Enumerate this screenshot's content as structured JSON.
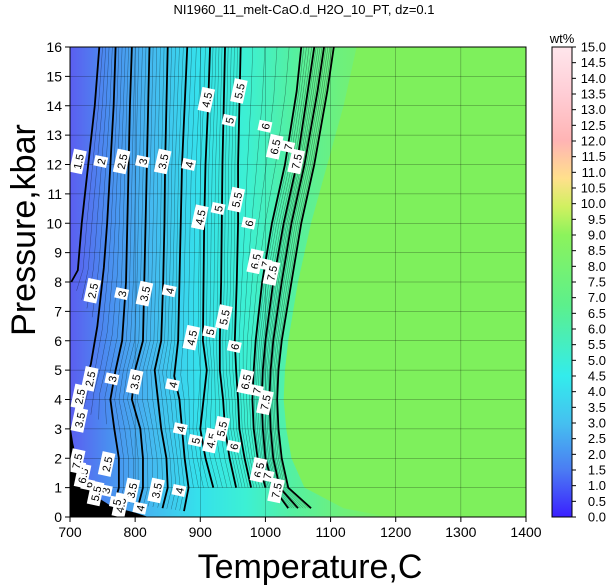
{
  "chart_data": {
    "type": "heatmap",
    "title": "NI1960_11_melt-CaO.d_H2O_10_PT, dz=0.1",
    "xlabel": "Temperature,C",
    "ylabel": "Pressure,kbar",
    "xlim": [
      700,
      1400
    ],
    "ylim": [
      0,
      16
    ],
    "x_ticks": [
      "700",
      "800",
      "900",
      "1000",
      "1100",
      "1200",
      "1300",
      "1400"
    ],
    "y_ticks": [
      "0",
      "1",
      "2",
      "3",
      "4",
      "5",
      "6",
      "7",
      "8",
      "9",
      "10",
      "11",
      "12",
      "13",
      "14",
      "15",
      "16"
    ],
    "grid": true,
    "colorbar": {
      "label": "wt%",
      "range": [
        0.0,
        15.0
      ],
      "ticks": [
        "0.0",
        "0.5",
        "1.0",
        "1.5",
        "2.0",
        "2.5",
        "3.0",
        "3.5",
        "4.0",
        "4.5",
        "5.0",
        "5.5",
        "6.0",
        "6.5",
        "7.0",
        "7.5",
        "8.0",
        "8.5",
        "9.0",
        "9.5",
        "10.0",
        "10.5",
        "11.0",
        "11.5",
        "12.0",
        "12.5",
        "13.0",
        "13.5",
        "14.0",
        "14.5",
        "15.0"
      ]
    },
    "saturated_value": 10.0,
    "contours": [
      {
        "level": "1.5",
        "points": [
          [
            745,
            16
          ],
          [
            738,
            14
          ],
          [
            728,
            12
          ],
          [
            718,
            10
          ],
          [
            712,
            8.4
          ],
          [
            702,
            8.0
          ]
        ]
      },
      {
        "level": "2",
        "points": [
          [
            770,
            16
          ],
          [
            767,
            14
          ],
          [
            762,
            12
          ],
          [
            757,
            10
          ],
          [
            752,
            8.5
          ],
          [
            742,
            6.5
          ],
          [
            732,
            5.2
          ],
          [
            720,
            4.4
          ],
          [
            708,
            3.8
          ]
        ]
      },
      {
        "level": "2.5",
        "points": [
          [
            795,
            16
          ],
          [
            792,
            14
          ],
          [
            790,
            12
          ],
          [
            788,
            10
          ],
          [
            786,
            8
          ],
          [
            780,
            6.0
          ],
          [
            770,
            5.0
          ],
          [
            762,
            4.0
          ],
          [
            768,
            3.0
          ],
          [
            775,
            2.0
          ],
          [
            775,
            1.0
          ],
          [
            770,
            0.6
          ]
        ]
      },
      {
        "level": "3",
        "points": [
          [
            822,
            16
          ],
          [
            820,
            14
          ],
          [
            818,
            12
          ],
          [
            816,
            10
          ],
          [
            814,
            8
          ],
          [
            812,
            6
          ],
          [
            800,
            5.0
          ],
          [
            795,
            4.0
          ],
          [
            808,
            3.0
          ],
          [
            812,
            2.0
          ],
          [
            812,
            1.0
          ],
          [
            805,
            0.4
          ]
        ]
      },
      {
        "level": "3.5",
        "points": [
          [
            850,
            16
          ],
          [
            848,
            14
          ],
          [
            846,
            12
          ],
          [
            845,
            10
          ],
          [
            843,
            8
          ],
          [
            840,
            6
          ],
          [
            830,
            5.0
          ],
          [
            835,
            4.0
          ],
          [
            840,
            3.0
          ],
          [
            848,
            2.0
          ],
          [
            850,
            1.0
          ],
          [
            842,
            0.3
          ]
        ]
      },
      {
        "level": "4",
        "points": [
          [
            880,
            16
          ],
          [
            876,
            14
          ],
          [
            872,
            12
          ],
          [
            870,
            10
          ],
          [
            868,
            8
          ],
          [
            866,
            6
          ],
          [
            860,
            4.8
          ],
          [
            868,
            4.0
          ],
          [
            872,
            3.0
          ],
          [
            876,
            2.0
          ],
          [
            882,
            1.0
          ],
          [
            875,
            0.2
          ]
        ]
      },
      {
        "level": "4.5",
        "points": [
          [
            915,
            16
          ],
          [
            912,
            14
          ],
          [
            908,
            12
          ],
          [
            906,
            10
          ],
          [
            905,
            8
          ],
          [
            904,
            6.0
          ],
          [
            910,
            5.0
          ],
          [
            905,
            4.0
          ],
          [
            900,
            3.0
          ],
          [
            908,
            2.0
          ],
          [
            920,
            1.0
          ]
        ]
      },
      {
        "level": "5",
        "points": [
          [
            938,
            16
          ],
          [
            936,
            14
          ],
          [
            934,
            12
          ],
          [
            933,
            10
          ],
          [
            932,
            8
          ],
          [
            930,
            6
          ],
          [
            930,
            5.0
          ],
          [
            935,
            4.0
          ],
          [
            938,
            3.0
          ],
          [
            945,
            2.0
          ],
          [
            955,
            1.0
          ]
        ]
      },
      {
        "level": "5.5",
        "points": [
          [
            962,
            16
          ],
          [
            960,
            14
          ],
          [
            958,
            12
          ],
          [
            958,
            10
          ],
          [
            956,
            8
          ],
          [
            953,
            6
          ],
          [
            955,
            5.0
          ],
          [
            958,
            4.0
          ],
          [
            960,
            3.0
          ],
          [
            968,
            2.0
          ],
          [
            978,
            1.0
          ]
        ]
      },
      {
        "level": "6",
        "points": [
          [
            1055,
            16
          ],
          [
            1048,
            14.5
          ],
          [
            1030,
            12
          ],
          [
            1010,
            10
          ],
          [
            995,
            8
          ],
          [
            985,
            6
          ],
          [
            982,
            5
          ],
          [
            980,
            4
          ],
          [
            982,
            3
          ],
          [
            988,
            2
          ],
          [
            1000,
            1.0
          ]
        ]
      },
      {
        "level": "6.5",
        "points": [
          [
            1075,
            16
          ],
          [
            1065,
            14.5
          ],
          [
            1048,
            12
          ],
          [
            1028,
            10
          ],
          [
            1012,
            8
          ],
          [
            1000,
            6
          ],
          [
            996,
            5
          ],
          [
            994,
            4
          ],
          [
            996,
            3
          ],
          [
            1000,
            2
          ],
          [
            1012,
            1.0
          ],
          [
            1035,
            0.3
          ]
        ]
      },
      {
        "level": "7",
        "points": [
          [
            1090,
            16
          ],
          [
            1080,
            14.5
          ],
          [
            1060,
            12
          ],
          [
            1040,
            10
          ],
          [
            1025,
            8
          ],
          [
            1012,
            6
          ],
          [
            1008,
            5
          ],
          [
            1006,
            4
          ],
          [
            1008,
            3
          ],
          [
            1012,
            2
          ],
          [
            1022,
            1.0
          ],
          [
            1050,
            0.3
          ]
        ]
      },
      {
        "level": "7.5",
        "points": [
          [
            1105,
            16
          ],
          [
            1095,
            14.5
          ],
          [
            1075,
            12
          ],
          [
            1055,
            10
          ],
          [
            1040,
            8
          ],
          [
            1025,
            6
          ],
          [
            1020,
            5
          ],
          [
            1018,
            4
          ],
          [
            1020,
            3
          ],
          [
            1025,
            2
          ],
          [
            1035,
            1.0
          ],
          [
            1070,
            0.3
          ]
        ]
      }
    ],
    "contour_labels": [
      {
        "text": "1.5",
        "x": 713,
        "y": 12.1
      },
      {
        "text": "2",
        "x": 748,
        "y": 12.1
      },
      {
        "text": "2.5",
        "x": 780,
        "y": 12.1
      },
      {
        "text": "3",
        "x": 812,
        "y": 12.1
      },
      {
        "text": "3.5",
        "x": 843,
        "y": 12.1
      },
      {
        "text": "4.5",
        "x": 910,
        "y": 14.2
      },
      {
        "text": "5",
        "x": 945,
        "y": 13.5
      },
      {
        "text": "5.5",
        "x": 960,
        "y": 14.5
      },
      {
        "text": "6",
        "x": 1000,
        "y": 13.3
      },
      {
        "text": "6.5",
        "x": 1015,
        "y": 12.6
      },
      {
        "text": "7",
        "x": 1035,
        "y": 12.6
      },
      {
        "text": "7.5",
        "x": 1048,
        "y": 12.1
      },
      {
        "text": "4",
        "x": 883,
        "y": 12.0
      },
      {
        "text": "2.5",
        "x": 735,
        "y": 7.7
      },
      {
        "text": "3",
        "x": 780,
        "y": 7.6
      },
      {
        "text": "3.5",
        "x": 815,
        "y": 7.6
      },
      {
        "text": "4",
        "x": 853,
        "y": 7.7
      },
      {
        "text": "4.5",
        "x": 900,
        "y": 10.2
      },
      {
        "text": "5",
        "x": 928,
        "y": 10.5
      },
      {
        "text": "5.5",
        "x": 956,
        "y": 10.8
      },
      {
        "text": "6",
        "x": 975,
        "y": 10.0
      },
      {
        "text": "6.5",
        "x": 985,
        "y": 8.7
      },
      {
        "text": "7",
        "x": 1000,
        "y": 8.6
      },
      {
        "text": "7.5",
        "x": 1010,
        "y": 8.3
      },
      {
        "text": "4.5",
        "x": 887,
        "y": 6.1
      },
      {
        "text": "5",
        "x": 915,
        "y": 6.3
      },
      {
        "text": "5.5",
        "x": 937,
        "y": 6.8
      },
      {
        "text": "6",
        "x": 953,
        "y": 5.8
      },
      {
        "text": "6.5",
        "x": 970,
        "y": 4.6
      },
      {
        "text": "7",
        "x": 987,
        "y": 4.3
      },
      {
        "text": "7.5",
        "x": 1000,
        "y": 3.9
      },
      {
        "text": "2.5",
        "x": 731,
        "y": 4.7
      },
      {
        "text": "3",
        "x": 765,
        "y": 4.7
      },
      {
        "text": "3.5",
        "x": 800,
        "y": 4.6
      },
      {
        "text": "4",
        "x": 858,
        "y": 4.5
      },
      {
        "text": "2.5",
        "x": 715,
        "y": 4.1
      },
      {
        "text": "3.5",
        "x": 715,
        "y": 3.3
      },
      {
        "text": "4",
        "x": 870,
        "y": 3.0
      },
      {
        "text": "4.5",
        "x": 917,
        "y": 2.6
      },
      {
        "text": "5",
        "x": 893,
        "y": 2.6
      },
      {
        "text": "5.5",
        "x": 933,
        "y": 3.0
      },
      {
        "text": "6",
        "x": 952,
        "y": 2.4
      },
      {
        "text": "6.5",
        "x": 990,
        "y": 1.6
      },
      {
        "text": "7",
        "x": 1003,
        "y": 1.4
      },
      {
        "text": "7.5",
        "x": 1017,
        "y": 0.9
      },
      {
        "text": "2.5",
        "x": 757,
        "y": 1.8
      },
      {
        "text": "3",
        "x": 755,
        "y": 0.9
      },
      {
        "text": "3.5",
        "x": 795,
        "y": 0.9
      },
      {
        "text": "3.5",
        "x": 833,
        "y": 0.9
      },
      {
        "text": "4",
        "x": 868,
        "y": 0.9
      },
      {
        "text": "4",
        "x": 808,
        "y": 0.3
      },
      {
        "text": "4.5",
        "x": 778,
        "y": 0.4
      },
      {
        "text": "5",
        "x": 772,
        "y": 0.5
      },
      {
        "text": "5.5",
        "x": 740,
        "y": 0.8
      },
      {
        "text": "6",
        "x": 728,
        "y": 1.1
      },
      {
        "text": "6.5",
        "x": 720,
        "y": 1.4
      },
      {
        "text": "7",
        "x": 714,
        "y": 1.7
      },
      {
        "text": "7.5",
        "x": 711,
        "y": 1.9
      }
    ]
  }
}
